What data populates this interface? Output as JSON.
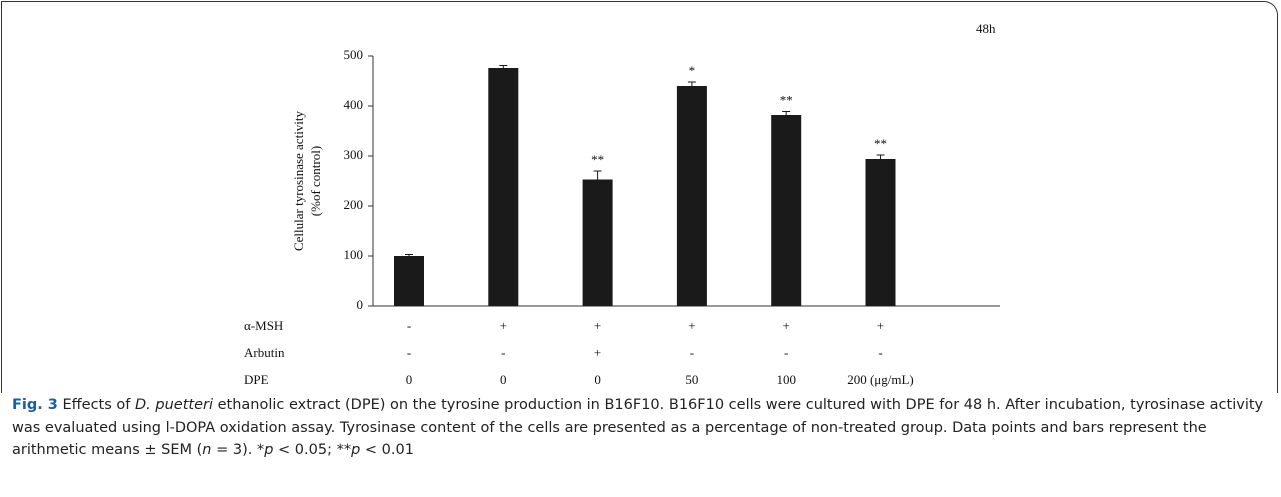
{
  "chart_data": {
    "type": "bar",
    "panel_label": "48h",
    "y_label": [
      "Cellular tyrosinase activity",
      "(%of control)"
    ],
    "categories": [
      null,
      null,
      null,
      null,
      null,
      null
    ],
    "values": [
      100,
      476,
      253,
      440,
      382,
      294
    ],
    "errors": [
      3,
      5,
      17,
      8,
      7,
      8
    ],
    "significance": [
      null,
      null,
      "**",
      "*",
      "**",
      "**"
    ],
    "color": "#1a1a1a",
    "ylim": [
      0,
      500
    ],
    "yticks": [
      0,
      100,
      200,
      300,
      400,
      500
    ],
    "grid": false,
    "treatments": [
      {
        "name": "α-MSH",
        "levels": [
          "-",
          "+",
          "+",
          "+",
          "+",
          "+"
        ]
      },
      {
        "name": "Arbutin",
        "levels": [
          "-",
          "-",
          "+",
          "-",
          "-",
          "-"
        ]
      },
      {
        "name": "DPE",
        "levels": [
          "0",
          "0",
          "0",
          "50",
          "100",
          "200 (μg/mL)"
        ]
      }
    ]
  },
  "caption": [
    {
      "text": "Fig. 3",
      "style": "bold"
    },
    {
      "text": " Effects of "
    },
    {
      "text": "D. puetteri",
      "style": "italic"
    },
    {
      "text": " ethanolic extract (DPE) on the tyrosine production in B16F10. B16F10 cells were cultured with DPE for 48 h. After incubation, tyrosinase activity was evaluated using l-DOPA oxidation assay. Tyrosinase content of the cells are presented as a percentage of non-treated group. Data points and bars represent the arithmetic means ± SEM ("
    },
    {
      "text": "n",
      "style": "italic"
    },
    {
      "text": " = 3). *"
    },
    {
      "text": "p",
      "style": "italic"
    },
    {
      "text": " < 0.05; **"
    },
    {
      "text": "p",
      "style": "italic"
    },
    {
      "text": " < 0.01"
    }
  ]
}
